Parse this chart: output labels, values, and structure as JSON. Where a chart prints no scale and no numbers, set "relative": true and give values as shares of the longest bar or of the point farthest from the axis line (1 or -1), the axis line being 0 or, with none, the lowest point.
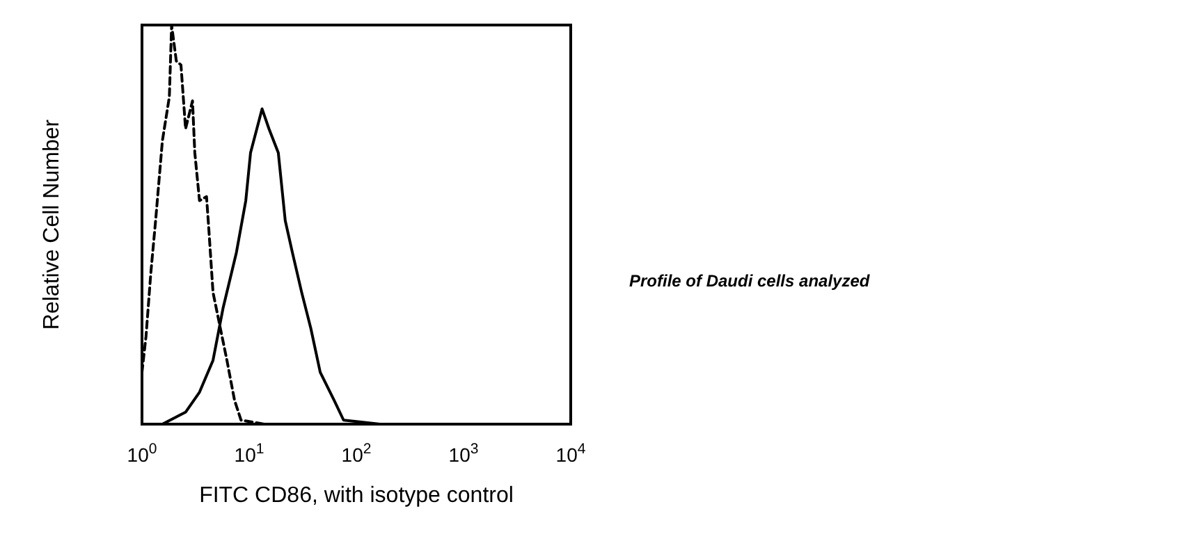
{
  "chart_data": {
    "type": "line",
    "log": "x",
    "relative": true,
    "xlabel": "FITC CD86, with isotype control",
    "ylabel": "Relative Cell Number",
    "xlim": [
      1,
      10000
    ],
    "xticks": [
      {
        "value": 1,
        "label": "10$^{0}$"
      },
      {
        "value": 10,
        "label": "10$^{1}$"
      },
      {
        "value": 100,
        "label": "10$^{2}$"
      },
      {
        "value": 1000,
        "label": "10$^{3}$"
      },
      {
        "value": 10000,
        "label": "10$^{4}$"
      }
    ],
    "grid": false,
    "annotations": [
      "Profile of Daudi cells analyzed"
    ],
    "series": [
      {
        "color": "#000000",
        "line_style": "dashed",
        "x": [
          1,
          1.09,
          1.21,
          1.34,
          1.55,
          1.8,
          1.89,
          2.09,
          2.31,
          2.55,
          2.96,
          3.11,
          3.44,
          4.0,
          4.2,
          4.6,
          6.2,
          7.3,
          8.4,
          13.9,
          30
        ],
        "values": [
          0.13,
          0.22,
          0.38,
          0.51,
          0.71,
          0.82,
          1,
          0.91,
          0.9,
          0.74,
          0.81,
          0.68,
          0.56,
          0.57,
          0.49,
          0.33,
          0.16,
          0.06,
          0.01,
          0,
          0
        ]
      },
      {
        "color": "#000000",
        "line_style": "solid",
        "x": [
          1.55,
          2.55,
          3.44,
          4.6,
          5.7,
          7.6,
          9.3,
          10.3,
          13.2,
          15.3,
          18.7,
          21.7,
          25.3,
          30.9,
          37.6,
          46,
          62,
          76,
          166,
          270
        ],
        "values": [
          0,
          0.03,
          0.08,
          0.16,
          0.29,
          0.43,
          0.56,
          0.68,
          0.79,
          0.74,
          0.68,
          0.51,
          0.43,
          0.33,
          0.24,
          0.13,
          0.06,
          0.01,
          0,
          0
        ]
      }
    ]
  }
}
